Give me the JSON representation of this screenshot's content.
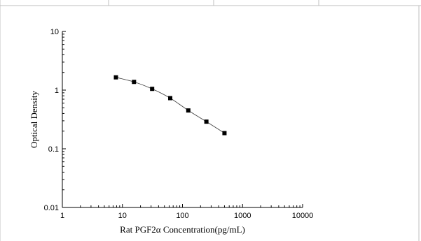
{
  "chart_data": {
    "type": "scatter",
    "xlabel": "Rat PGF2α Concentration(pg/mL)",
    "ylabel": "Optical Density",
    "x_scale": "log",
    "y_scale": "log",
    "xlim": [
      1,
      10000
    ],
    "ylim": [
      0.01,
      10
    ],
    "x_ticks": [
      "1",
      "10",
      "100",
      "1000",
      "10000"
    ],
    "y_ticks": [
      "0.01",
      "0.1",
      "1",
      "10"
    ],
    "series": [
      {
        "x": [
          7.8,
          15.6,
          31.25,
          62.5,
          125,
          250,
          500
        ],
        "y": [
          1.65,
          1.38,
          1.05,
          0.73,
          0.45,
          0.29,
          0.185
        ]
      }
    ],
    "grid": false,
    "legend": "none"
  }
}
